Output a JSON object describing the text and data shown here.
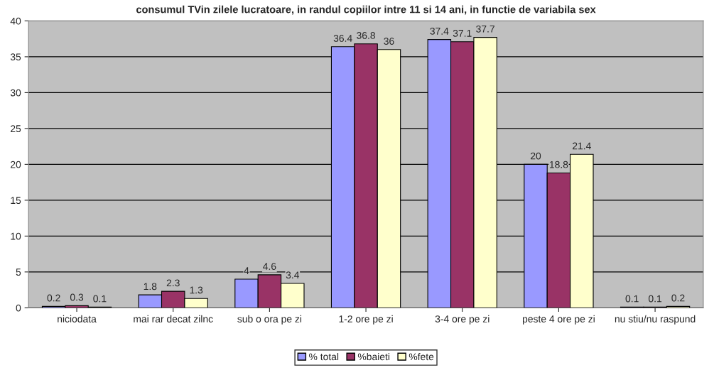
{
  "chart_data": {
    "type": "bar",
    "title": "consumul TVin zilele lucratoare, in randul copiilor intre 11 si 14 ani, in functie de variabila sex",
    "categories": [
      "niciodata",
      "mai rar decat zilnc",
      "sub o ora pe zi",
      "1-2 ore pe zi",
      "3-4 ore pe zi",
      "peste 4 ore pe zi",
      "nu stiu/nu raspund"
    ],
    "series": [
      {
        "name": "% total",
        "color": "#9999ff",
        "values": [
          0.2,
          1.8,
          4,
          36.4,
          37.4,
          20,
          0.1
        ]
      },
      {
        "name": "%baieti",
        "color": "#993366",
        "values": [
          0.3,
          2.3,
          4.6,
          36.8,
          37.1,
          18.8,
          0.1
        ]
      },
      {
        "name": "%fete",
        "color": "#ffffcc",
        "values": [
          0.1,
          1.3,
          3.4,
          36,
          37.7,
          21.4,
          0.2
        ]
      }
    ],
    "ylim": [
      0,
      40
    ],
    "yticks": [
      0,
      5,
      10,
      15,
      20,
      25,
      30,
      35,
      40
    ],
    "grid": "y",
    "legend": "bottom",
    "data_labels": true
  }
}
